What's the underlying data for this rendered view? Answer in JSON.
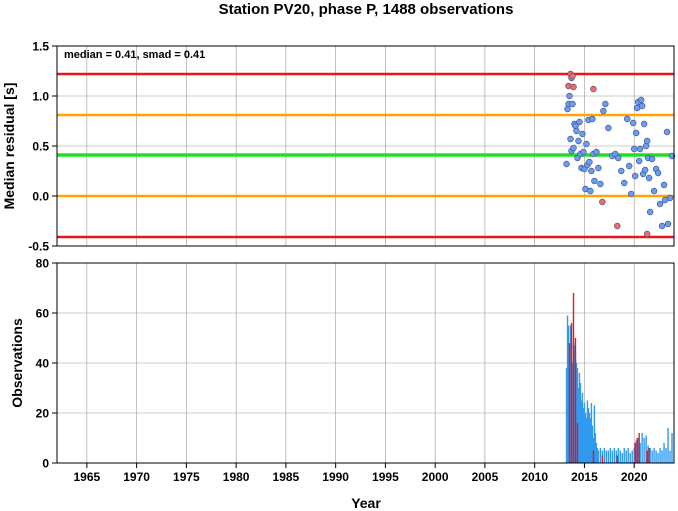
{
  "title": "Station PV20, phase P, 1488 observations",
  "colors": {
    "red": "#e8161b",
    "orange": "#ffa500",
    "green": "#22dd22",
    "point_blue": "#6a9cf0",
    "point_red": "#f46a5e",
    "bar_blue": "#2f9af0",
    "bar_red": "#e8161b",
    "grid": "#999999"
  },
  "chart_data": [
    {
      "type": "scatter",
      "annotation": "median = 0.41, smad = 0.41",
      "xlabel": "",
      "ylabel": "Median residual [s]",
      "xlim": [
        1962,
        2024
      ],
      "ylim": [
        -0.5,
        1.5
      ],
      "yticks": [
        "-0.5",
        "0.0",
        "0.5",
        "1.0",
        "1.5"
      ],
      "grid": true,
      "reference_lines": [
        {
          "y": 1.22,
          "color": "red"
        },
        {
          "y": 0.81,
          "color": "orange"
        },
        {
          "y": 0.41,
          "color": "green"
        },
        {
          "y": 0.0,
          "color": "orange"
        },
        {
          "y": -0.41,
          "color": "red"
        }
      ],
      "series": [
        {
          "color": "point_blue",
          "points": [
            [
              2013.2,
              0.32
            ],
            [
              2013.3,
              0.87
            ],
            [
              2013.4,
              0.92
            ],
            [
              2013.5,
              1.0
            ],
            [
              2013.6,
              0.57
            ],
            [
              2013.7,
              0.45
            ],
            [
              2013.8,
              0.92
            ],
            [
              2013.9,
              0.48
            ],
            [
              2014.0,
              0.72
            ],
            [
              2014.1,
              0.7
            ],
            [
              2014.2,
              0.65
            ],
            [
              2014.3,
              0.38
            ],
            [
              2014.4,
              0.55
            ],
            [
              2014.5,
              0.74
            ],
            [
              2014.6,
              0.42
            ],
            [
              2014.7,
              0.28
            ],
            [
              2014.8,
              0.62
            ],
            [
              2014.9,
              0.44
            ],
            [
              2015.0,
              0.27
            ],
            [
              2015.1,
              0.07
            ],
            [
              2015.2,
              0.52
            ],
            [
              2015.3,
              0.31
            ],
            [
              2015.4,
              0.76
            ],
            [
              2015.5,
              0.34
            ],
            [
              2015.6,
              0.05
            ],
            [
              2015.7,
              0.25
            ],
            [
              2015.8,
              0.77
            ],
            [
              2015.9,
              0.42
            ],
            [
              2016.0,
              0.15
            ],
            [
              2016.2,
              0.44
            ],
            [
              2016.4,
              0.28
            ],
            [
              2016.6,
              0.12
            ],
            [
              2016.9,
              0.85
            ],
            [
              2017.1,
              0.92
            ],
            [
              2017.4,
              0.68
            ],
            [
              2017.8,
              0.4
            ],
            [
              2018.1,
              0.42
            ],
            [
              2018.4,
              0.38
            ],
            [
              2018.7,
              0.25
            ],
            [
              2019.0,
              0.13
            ],
            [
              2019.3,
              0.77
            ],
            [
              2019.5,
              0.3
            ],
            [
              2019.7,
              0.02
            ],
            [
              2019.9,
              0.73
            ],
            [
              2020.0,
              0.47
            ],
            [
              2020.1,
              0.2
            ],
            [
              2020.2,
              0.63
            ],
            [
              2020.3,
              0.88
            ],
            [
              2020.4,
              0.94
            ],
            [
              2020.5,
              0.35
            ],
            [
              2020.6,
              0.47
            ],
            [
              2020.7,
              0.96
            ],
            [
              2020.8,
              0.9
            ],
            [
              2020.9,
              0.22
            ],
            [
              2021.0,
              0.72
            ],
            [
              2021.1,
              0.26
            ],
            [
              2021.2,
              0.5
            ],
            [
              2021.3,
              0.55
            ],
            [
              2021.4,
              0.38
            ],
            [
              2021.5,
              0.18
            ],
            [
              2021.6,
              -0.16
            ],
            [
              2021.8,
              0.37
            ],
            [
              2022.0,
              0.05
            ],
            [
              2022.2,
              0.27
            ],
            [
              2022.4,
              0.23
            ],
            [
              2022.6,
              -0.08
            ],
            [
              2022.8,
              -0.3
            ],
            [
              2023.0,
              0.11
            ],
            [
              2023.1,
              -0.04
            ],
            [
              2023.3,
              0.64
            ],
            [
              2023.4,
              -0.28
            ],
            [
              2023.6,
              -0.02
            ],
            [
              2023.8,
              0.4
            ]
          ]
        },
        {
          "color": "point_red",
          "points": [
            [
              2013.4,
              1.1
            ],
            [
              2013.6,
              1.22
            ],
            [
              2013.7,
              1.18
            ],
            [
              2013.8,
              1.2
            ],
            [
              2013.9,
              1.09
            ],
            [
              2015.9,
              1.07
            ],
            [
              2016.8,
              -0.06
            ],
            [
              2018.3,
              -0.3
            ],
            [
              2021.3,
              -0.38
            ]
          ]
        }
      ]
    },
    {
      "type": "bar",
      "xlabel": "Year",
      "ylabel": "Observations",
      "xlim": [
        1962,
        2024
      ],
      "ylim": [
        0,
        80
      ],
      "yticks": [
        "0",
        "20",
        "40",
        "60",
        "80"
      ],
      "xticks": [
        "1965",
        "1970",
        "1975",
        "1980",
        "1985",
        "1990",
        "1995",
        "2000",
        "2005",
        "2010",
        "2015",
        "2020"
      ],
      "grid": true,
      "series": [
        {
          "color": "bar_blue",
          "x": [
            2013.2,
            2013.3,
            2013.4,
            2013.5,
            2013.6,
            2013.7,
            2013.8,
            2013.9,
            2014.0,
            2014.1,
            2014.2,
            2014.3,
            2014.4,
            2014.5,
            2014.6,
            2014.7,
            2014.8,
            2014.9,
            2015.0,
            2015.1,
            2015.2,
            2015.3,
            2015.4,
            2015.5,
            2015.6,
            2015.7,
            2015.8,
            2015.9,
            2016.0,
            2016.1,
            2016.2,
            2016.3,
            2016.4,
            2016.6,
            2016.8,
            2017.0,
            2017.2,
            2017.4,
            2017.6,
            2017.8,
            2018.0,
            2018.2,
            2018.4,
            2018.6,
            2018.8,
            2019.0,
            2019.2,
            2019.4,
            2019.6,
            2019.8,
            2020.0,
            2020.2,
            2020.4,
            2020.6,
            2020.8,
            2021.0,
            2021.2,
            2021.4,
            2021.6,
            2021.8,
            2022.0,
            2022.2,
            2022.4,
            2022.6,
            2022.8,
            2023.0,
            2023.2,
            2023.4,
            2023.6,
            2023.8
          ],
          "values": [
            38,
            59,
            55,
            43,
            55,
            35,
            40,
            48,
            47,
            44,
            40,
            38,
            30,
            36,
            32,
            25,
            28,
            22,
            24,
            20,
            18,
            25,
            22,
            20,
            18,
            24,
            15,
            10,
            23,
            12,
            8,
            6,
            5,
            6,
            5,
            6,
            5,
            5,
            6,
            5,
            6,
            5,
            6,
            5,
            4,
            6,
            5,
            6,
            4,
            5,
            6,
            9,
            10,
            8,
            12,
            10,
            11,
            7,
            6,
            5,
            6,
            5,
            4,
            6,
            5,
            8,
            6,
            14,
            5,
            12
          ]
        },
        {
          "color": "bar_red",
          "x": [
            2013.5,
            2013.7,
            2013.9,
            2014.1,
            2014.3,
            2015.9,
            2016.8,
            2018.3,
            2020.1,
            2020.3,
            2020.5,
            2021.3,
            2021.5
          ],
          "values": [
            48,
            56,
            68,
            50,
            16,
            5,
            3,
            3,
            8,
            10,
            12,
            5,
            6
          ]
        }
      ]
    }
  ]
}
